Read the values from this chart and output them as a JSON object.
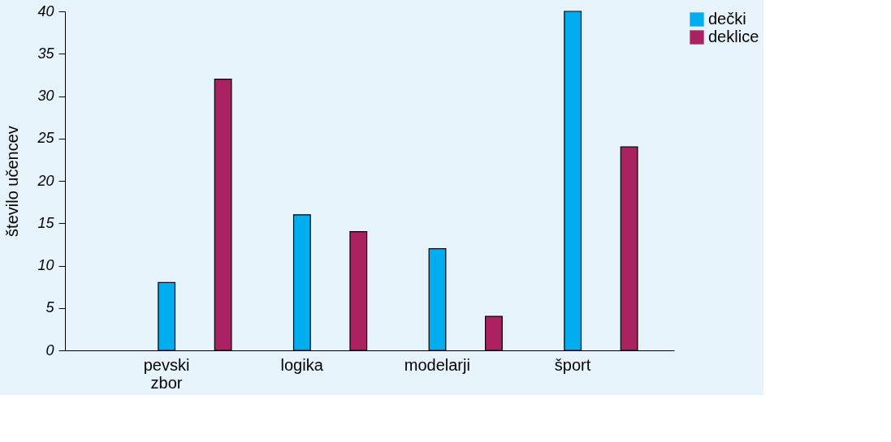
{
  "chart_data": {
    "type": "bar",
    "ylabel": "število učencev",
    "categories": [
      "pevski zbor",
      "logika",
      "modelarji",
      "šport"
    ],
    "series": [
      {
        "name": "dečki",
        "color": "#00aeef",
        "values": [
          8,
          16,
          12,
          40
        ]
      },
      {
        "name": "deklice",
        "color": "#aa2261",
        "values": [
          32,
          14,
          4,
          24
        ]
      }
    ],
    "ylim": [
      0,
      40
    ],
    "yticks": [
      0,
      5,
      10,
      15,
      20,
      25,
      30,
      35,
      40
    ],
    "grid": false,
    "legend": "top right"
  }
}
